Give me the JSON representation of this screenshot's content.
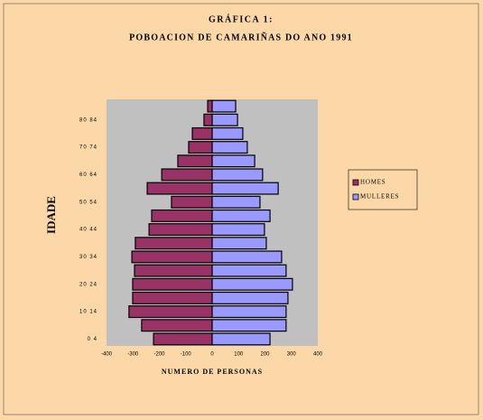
{
  "chart_data": {
    "type": "bar",
    "orientation": "horizontal",
    "title": "GRÁFICA 1:",
    "subtitle": "POBOACION DE CAMARIÑAS DO ANO 1991",
    "xlabel": "NUMERO DE PERSONAS",
    "ylabel": "IDADE",
    "categories": [
      "0 4",
      null,
      "10 14",
      null,
      "20 24",
      null,
      "30 34",
      null,
      "40 44",
      null,
      "50 54",
      null,
      "60 64",
      null,
      "70 74",
      null,
      "80 84",
      null
    ],
    "series": [
      {
        "name": "HOMES",
        "color": "#993366",
        "values": [
          -222,
          -267,
          -315,
          -301,
          -301,
          -294,
          -304,
          -291,
          -239,
          -229,
          -154,
          -246,
          -191,
          -130,
          -89,
          -75,
          -31,
          -17
        ]
      },
      {
        "name": "MULLERES",
        "color": "#9999ff",
        "values": [
          219,
          280,
          280,
          287,
          304,
          280,
          263,
          205,
          198,
          219,
          181,
          250,
          191,
          161,
          133,
          116,
          96,
          89
        ]
      }
    ],
    "xlim": [
      -400,
      400
    ],
    "xticks": [
      -400,
      -300,
      -200,
      -100,
      0,
      100,
      200,
      300,
      400
    ],
    "legend": "right"
  }
}
